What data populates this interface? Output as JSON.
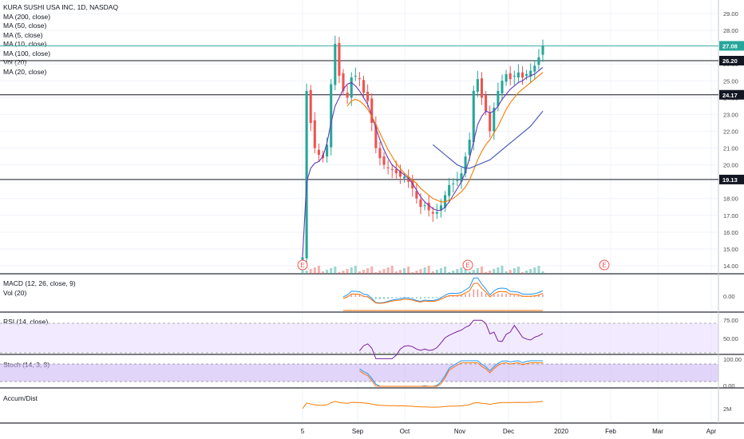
{
  "header": {
    "symbol_title": "KURA SUSHI USA INC, 1D, NASDAQ",
    "indicators": [
      "MA (200, close)",
      "MA (50, close)",
      "MA (5, close)",
      "MA (10, close)",
      "MA (100, close)",
      "Vol (20)",
      "MA (20, close)"
    ]
  },
  "panes": {
    "macd": "MACD (12, 26, close, 9)",
    "vol": "Vol (20)",
    "rsi": "RSI (14, close)",
    "stoch": "Stoch (14, 3, 3)",
    "accum": "Accum/Dist"
  },
  "colors": {
    "up": "#26a69a",
    "down": "#ef5350",
    "ma_orange": "#f57c00",
    "ma_blue": "#2962ff",
    "ma_purple": "#673ab7",
    "ma_navy": "#3f51b5",
    "macd_line": "#2196f3",
    "signal_line": "#ff6d00",
    "rsi_line": "#7b1fa2",
    "stoch_k": "#2196f3",
    "stoch_d": "#ff6d00",
    "accum_line": "#f57c00",
    "band_fill": "#e8dbff"
  },
  "chart_data": {
    "type": "candlestick",
    "title": "KURA SUSHI USA INC, 1D, NASDAQ",
    "y_axis_ticks": [
      "29.00",
      "28.00",
      "27.00",
      "26.00",
      "25.00",
      "24.00",
      "23.00",
      "22.00",
      "21.00",
      "20.00",
      "19.00",
      "18.00",
      "17.00",
      "16.00",
      "15.00",
      "14.00"
    ],
    "ylim": [
      13.5,
      29.5
    ],
    "x_axis_ticks": [
      "5",
      "Sep",
      "Oct",
      "Nov",
      "Dec",
      "2020",
      "Feb",
      "Mar",
      "Apr"
    ],
    "horizontal_levels": [
      "26.20",
      "24.17",
      "19.13"
    ],
    "last_price": "27.08",
    "earnings_markers": [
      "E",
      "E",
      "E"
    ],
    "macd_ticks": [
      "0.00"
    ],
    "rsi_ticks": [
      "75.00",
      "50.00"
    ],
    "stoch_ticks": [
      "100.00",
      "0.00"
    ],
    "accum_ticks": [
      "2M"
    ],
    "close_series": [
      14.5,
      24.4,
      22.5,
      21.0,
      20.6,
      20.4,
      21.2,
      24.8,
      27.2,
      25.3,
      24.4,
      24.0,
      25.2,
      25.3,
      25.1,
      24.3,
      23.8,
      22.5,
      21.0,
      20.4,
      20.0,
      19.8,
      19.7,
      19.5,
      19.3,
      19.3,
      19.0,
      18.6,
      18.0,
      17.5,
      17.6,
      17.3,
      17.1,
      17.2,
      17.6,
      18.2,
      18.8,
      18.9,
      19.1,
      19.5,
      20.5,
      21.5,
      24.4,
      25.1,
      24.0,
      23.2,
      22.0,
      23.4,
      24.4,
      25.0,
      25.4,
      25.1,
      25.3,
      25.5,
      25.2,
      25.4,
      25.6,
      25.9,
      26.4,
      27.08
    ],
    "ma_short": [
      14.5,
      19.0,
      19.8,
      20.1,
      20.2,
      20.5,
      21.3,
      22.5,
      23.5,
      24.0,
      24.5,
      24.8,
      24.9,
      24.7,
      24.4,
      24.0,
      23.6,
      22.9,
      22.2,
      21.5,
      20.9,
      20.4,
      20.0,
      19.8,
      19.6,
      19.4,
      19.2,
      18.9,
      18.5,
      18.1,
      17.8,
      17.6,
      17.4,
      17.3,
      17.3,
      17.5,
      17.8,
      18.2,
      18.6,
      19.0,
      19.6,
      20.4,
      21.4,
      22.4,
      22.9,
      23.2,
      23.1,
      23.2,
      23.5,
      23.9,
      24.2,
      24.5,
      24.7,
      24.9,
      25.0,
      25.2,
      25.3,
      25.4,
      25.6,
      25.8
    ],
    "ma_mid": [
      null,
      null,
      null,
      null,
      null,
      null,
      null,
      null,
      null,
      null,
      null,
      23.5,
      23.8,
      23.9,
      23.8,
      23.6,
      23.3,
      22.9,
      22.4,
      21.9,
      21.4,
      20.9,
      20.5,
      20.1,
      19.8,
      19.5,
      19.3,
      19.1,
      18.9,
      18.6,
      18.4,
      18.2,
      18.0,
      17.9,
      17.8,
      17.8,
      17.9,
      18.0,
      18.2,
      18.4,
      18.7,
      19.1,
      19.7,
      20.3,
      20.8,
      21.2,
      21.5,
      21.9,
      22.3,
      22.8,
      23.3,
      23.7,
      24.0,
      24.3,
      24.5,
      24.7,
      24.9,
      25.1,
      25.3,
      25.5
    ],
    "ma_long": [
      null,
      null,
      null,
      null,
      null,
      null,
      null,
      null,
      null,
      null,
      null,
      null,
      null,
      null,
      null,
      null,
      null,
      null,
      null,
      null,
      null,
      null,
      null,
      null,
      null,
      null,
      null,
      null,
      null,
      null,
      null,
      null,
      21.2,
      21.0,
      20.8,
      20.6,
      20.4,
      20.2,
      20.0,
      19.9,
      19.8,
      19.8,
      19.9,
      20.0,
      20.1,
      20.2,
      20.3,
      20.5,
      20.7,
      20.9,
      21.1,
      21.3,
      21.5,
      21.7,
      21.9,
      22.1,
      22.3,
      22.6,
      22.9,
      23.2
    ]
  }
}
